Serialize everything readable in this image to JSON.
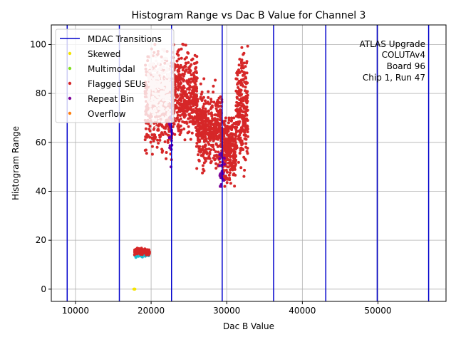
{
  "chart_data": {
    "type": "scatter",
    "title": "Histogram Range vs Dac B Value for Channel 3",
    "xlabel": "Dac B Value",
    "ylabel": "Histogram Range",
    "xlim": [
      6800,
      59000
    ],
    "ylim": [
      -5,
      108
    ],
    "x_ticks": [
      10000,
      20000,
      30000,
      40000,
      50000
    ],
    "x_tick_labels": [
      "10000",
      "20000",
      "30000",
      "40000",
      "50000"
    ],
    "y_ticks": [
      0,
      20,
      40,
      60,
      80,
      100
    ],
    "y_tick_labels": [
      "0",
      "20",
      "40",
      "60",
      "80",
      "100"
    ],
    "grid": true,
    "legend_position": "top-left",
    "mdac_transitions": [
      8900,
      15800,
      22700,
      29400,
      36200,
      43100,
      49900,
      56700
    ],
    "legend": [
      {
        "label": "MDAC Transitions",
        "kind": "line",
        "color": "#0000cc"
      },
      {
        "label": "Skewed",
        "kind": "marker",
        "color": "#f5e400"
      },
      {
        "label": "Multimodal",
        "kind": "marker",
        "color": "#80e020"
      },
      {
        "label": "Flagged SEUs",
        "kind": "marker",
        "color": "#d62728"
      },
      {
        "label": "Repeat Bin",
        "kind": "marker",
        "color": "#7b0099"
      },
      {
        "label": "Overflow",
        "kind": "marker",
        "color": "#ff7f0e"
      }
    ],
    "annotation": [
      "ATLAS Upgrade",
      "COLUTAv4",
      "Board 96",
      "Chip 1, Run 47"
    ],
    "clusters": [
      {
        "series": "Flagged SEUs",
        "color": "#d62728",
        "x_range": [
          19200,
          22900
        ],
        "y_center": 76,
        "y_spread": 9,
        "y_clip": [
          39,
          100
        ],
        "count": 520
      },
      {
        "series": "Flagged SEUs",
        "color": "#d62728",
        "x_range": [
          22900,
          26100
        ],
        "y_center": 80,
        "y_spread": 8,
        "y_clip": [
          58,
          103
        ],
        "count": 420
      },
      {
        "series": "Flagged SEUs",
        "color": "#d62728",
        "x_range": [
          26000,
          29400
        ],
        "y_center": 66,
        "y_spread": 7,
        "y_clip": [
          39,
          86
        ],
        "count": 460
      },
      {
        "series": "Flagged SEUs",
        "color": "#d62728",
        "x_range": [
          29400,
          31200
        ],
        "y_center": 57,
        "y_spread": 6,
        "y_clip": [
          42,
          70
        ],
        "count": 300
      },
      {
        "series": "Flagged SEUs",
        "color": "#d62728",
        "x_range": [
          31200,
          32800
        ],
        "y_center": 74,
        "y_spread": 11,
        "y_clip": [
          39,
          101
        ],
        "count": 260
      },
      {
        "series": "Repeat Bin",
        "color": "#7b0099",
        "x_range": [
          22400,
          22800
        ],
        "y_center": 62,
        "y_spread": 6,
        "y_clip": [
          50,
          75
        ],
        "count": 20
      },
      {
        "series": "Repeat Bin",
        "color": "#7b0099",
        "x_range": [
          29000,
          29700
        ],
        "y_center": 50,
        "y_spread": 5,
        "y_clip": [
          42,
          60
        ],
        "count": 25
      },
      {
        "series": "Overlay",
        "color": "#f2d8d8",
        "x_range": [
          19600,
          22600
        ],
        "y_center": 82,
        "y_spread": 6,
        "y_clip": [
          66,
          98
        ],
        "count": 260
      },
      {
        "series": "Overlay",
        "color": "#17becf",
        "x_range": [
          17800,
          19800
        ],
        "y_center": 14.3,
        "y_spread": 0.6,
        "y_clip": [
          13,
          15.5
        ],
        "count": 120
      },
      {
        "series": "Flagged SEUs",
        "color": "#d62728",
        "x_range": [
          17800,
          19800
        ],
        "y_center": 15.3,
        "y_spread": 0.6,
        "y_clip": [
          14,
          17
        ],
        "count": 140
      },
      {
        "series": "Skewed",
        "color": "#f5e400",
        "x_range": [
          17600,
          17900
        ],
        "y_center": 0,
        "y_spread": 0,
        "y_clip": [
          0,
          0
        ],
        "count": 4
      }
    ]
  }
}
